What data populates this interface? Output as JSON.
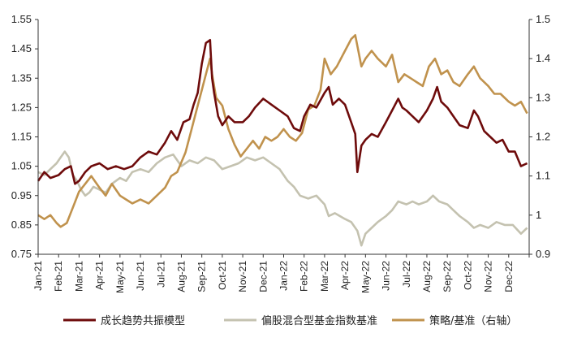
{
  "chart_data": {
    "type": "line",
    "title": "",
    "x_axis": {
      "type": "month",
      "tick_labels": [
        "Jan-21",
        "Feb-21",
        "Mar-21",
        "Apr-21",
        "May-21",
        "Jun-21",
        "Jul-21",
        "Aug-21",
        "Sep-21",
        "Oct-21",
        "Nov-21",
        "Dec-21",
        "Jan-22",
        "Feb-22",
        "Mar-22",
        "Apr-22",
        "May-22",
        "Jun-22",
        "Jul-22",
        "Aug-22",
        "Sep-22",
        "Oct-22",
        "Nov-22",
        "Dec-22"
      ],
      "range": [
        "Jan-21",
        "end of Dec-22"
      ]
    },
    "y_left": {
      "min": 0.75,
      "max": 1.55,
      "ticks": [
        0.75,
        0.85,
        0.95,
        1.05,
        1.15,
        1.25,
        1.35,
        1.45,
        1.55
      ],
      "tick_labels": [
        "0.75",
        "0.85",
        "0.95",
        "1.05",
        "1.15",
        "1.25",
        "1.35",
        "1.45",
        "1.55"
      ]
    },
    "y_right": {
      "min": 0.9,
      "max": 1.5,
      "ticks": [
        0.9,
        1.0,
        1.1,
        1.2,
        1.3,
        1.4,
        1.5
      ],
      "tick_labels": [
        "0.9",
        "1",
        "1.1",
        "1.2",
        "1.3",
        "1.4",
        "1.5"
      ]
    },
    "grid": false,
    "legend_position": "bottom",
    "series": [
      {
        "name": "成长趋势共振模型",
        "axis": "left",
        "color": "#6e0b0b",
        "points": [
          [
            0,
            1.0
          ],
          [
            0.3,
            1.03
          ],
          [
            0.6,
            1.01
          ],
          [
            1.0,
            1.02
          ],
          [
            1.3,
            1.04
          ],
          [
            1.6,
            1.05
          ],
          [
            1.8,
            0.99
          ],
          [
            2.0,
            1.0
          ],
          [
            2.3,
            1.03
          ],
          [
            2.6,
            1.05
          ],
          [
            3.0,
            1.06
          ],
          [
            3.4,
            1.04
          ],
          [
            3.8,
            1.05
          ],
          [
            4.2,
            1.04
          ],
          [
            4.6,
            1.05
          ],
          [
            5.0,
            1.08
          ],
          [
            5.4,
            1.1
          ],
          [
            5.8,
            1.09
          ],
          [
            6.2,
            1.13
          ],
          [
            6.5,
            1.17
          ],
          [
            6.8,
            1.14
          ],
          [
            7.1,
            1.2
          ],
          [
            7.4,
            1.21
          ],
          [
            7.6,
            1.26
          ],
          [
            7.8,
            1.3
          ],
          [
            8.0,
            1.4
          ],
          [
            8.2,
            1.47
          ],
          [
            8.4,
            1.48
          ],
          [
            8.5,
            1.35
          ],
          [
            8.6,
            1.3
          ],
          [
            8.8,
            1.22
          ],
          [
            9.0,
            1.19
          ],
          [
            9.3,
            1.22
          ],
          [
            9.6,
            1.2
          ],
          [
            10.0,
            1.2
          ],
          [
            10.3,
            1.22
          ],
          [
            10.6,
            1.25
          ],
          [
            11.0,
            1.28
          ],
          [
            11.4,
            1.26
          ],
          [
            11.8,
            1.24
          ],
          [
            12.2,
            1.22
          ],
          [
            12.5,
            1.18
          ],
          [
            12.8,
            1.17
          ],
          [
            13.0,
            1.22
          ],
          [
            13.3,
            1.26
          ],
          [
            13.6,
            1.25
          ],
          [
            14.0,
            1.3
          ],
          [
            14.2,
            1.32
          ],
          [
            14.4,
            1.26
          ],
          [
            14.7,
            1.28
          ],
          [
            15.0,
            1.26
          ],
          [
            15.3,
            1.2
          ],
          [
            15.5,
            1.16
          ],
          [
            15.6,
            1.03
          ],
          [
            15.8,
            1.12
          ],
          [
            16.0,
            1.14
          ],
          [
            16.3,
            1.16
          ],
          [
            16.6,
            1.15
          ],
          [
            17.0,
            1.2
          ],
          [
            17.3,
            1.24
          ],
          [
            17.6,
            1.28
          ],
          [
            17.8,
            1.25
          ],
          [
            18.0,
            1.24
          ],
          [
            18.3,
            1.22
          ],
          [
            18.6,
            1.2
          ],
          [
            19.0,
            1.24
          ],
          [
            19.3,
            1.28
          ],
          [
            19.5,
            1.32
          ],
          [
            19.7,
            1.27
          ],
          [
            20.0,
            1.25
          ],
          [
            20.3,
            1.22
          ],
          [
            20.6,
            1.19
          ],
          [
            21.0,
            1.18
          ],
          [
            21.3,
            1.24
          ],
          [
            21.5,
            1.22
          ],
          [
            21.8,
            1.17
          ],
          [
            22.1,
            1.15
          ],
          [
            22.4,
            1.13
          ],
          [
            22.7,
            1.14
          ],
          [
            23.0,
            1.1
          ],
          [
            23.3,
            1.1
          ],
          [
            23.6,
            1.05
          ],
          [
            23.9,
            1.06
          ]
        ]
      },
      {
        "name": "偏股混合型基金指数基准",
        "axis": "left",
        "color": "#c4c2b0",
        "points": [
          [
            0,
            1.03
          ],
          [
            0.3,
            1.02
          ],
          [
            0.6,
            1.04
          ],
          [
            0.9,
            1.06
          ],
          [
            1.1,
            1.08
          ],
          [
            1.3,
            1.1
          ],
          [
            1.5,
            1.08
          ],
          [
            1.7,
            1.02
          ],
          [
            1.9,
            1.0
          ],
          [
            2.1,
            0.97
          ],
          [
            2.3,
            0.95
          ],
          [
            2.5,
            0.96
          ],
          [
            2.7,
            0.98
          ],
          [
            3.0,
            0.97
          ],
          [
            3.3,
            0.96
          ],
          [
            3.6,
            0.99
          ],
          [
            4.0,
            1.01
          ],
          [
            4.3,
            1.0
          ],
          [
            4.6,
            1.03
          ],
          [
            5.0,
            1.04
          ],
          [
            5.4,
            1.03
          ],
          [
            5.8,
            1.06
          ],
          [
            6.2,
            1.08
          ],
          [
            6.6,
            1.09
          ],
          [
            7.0,
            1.05
          ],
          [
            7.4,
            1.07
          ],
          [
            7.8,
            1.06
          ],
          [
            8.2,
            1.08
          ],
          [
            8.6,
            1.07
          ],
          [
            9.0,
            1.04
          ],
          [
            9.4,
            1.05
          ],
          [
            9.8,
            1.06
          ],
          [
            10.2,
            1.08
          ],
          [
            10.6,
            1.07
          ],
          [
            11.0,
            1.08
          ],
          [
            11.4,
            1.06
          ],
          [
            11.8,
            1.04
          ],
          [
            12.2,
            1.0
          ],
          [
            12.5,
            0.98
          ],
          [
            12.8,
            0.95
          ],
          [
            13.2,
            0.94
          ],
          [
            13.6,
            0.95
          ],
          [
            14.0,
            0.92
          ],
          [
            14.2,
            0.88
          ],
          [
            14.5,
            0.89
          ],
          [
            15.0,
            0.87
          ],
          [
            15.3,
            0.86
          ],
          [
            15.6,
            0.83
          ],
          [
            15.8,
            0.78
          ],
          [
            16.0,
            0.82
          ],
          [
            16.3,
            0.84
          ],
          [
            16.6,
            0.86
          ],
          [
            17.0,
            0.88
          ],
          [
            17.3,
            0.9
          ],
          [
            17.6,
            0.93
          ],
          [
            18.0,
            0.92
          ],
          [
            18.3,
            0.93
          ],
          [
            18.6,
            0.92
          ],
          [
            19.0,
            0.93
          ],
          [
            19.3,
            0.95
          ],
          [
            19.6,
            0.93
          ],
          [
            20.0,
            0.92
          ],
          [
            20.3,
            0.9
          ],
          [
            20.6,
            0.88
          ],
          [
            21.0,
            0.86
          ],
          [
            21.3,
            0.84
          ],
          [
            21.6,
            0.85
          ],
          [
            22.0,
            0.84
          ],
          [
            22.4,
            0.86
          ],
          [
            22.8,
            0.85
          ],
          [
            23.2,
            0.85
          ],
          [
            23.6,
            0.82
          ],
          [
            23.9,
            0.84
          ]
        ]
      },
      {
        "name": "策略/基准（右轴）",
        "axis": "right",
        "color": "#c0924d",
        "points": [
          [
            0,
            1.0
          ],
          [
            0.3,
            0.99
          ],
          [
            0.6,
            1.0
          ],
          [
            0.9,
            0.98
          ],
          [
            1.1,
            0.97
          ],
          [
            1.4,
            0.98
          ],
          [
            1.7,
            1.02
          ],
          [
            2.0,
            1.06
          ],
          [
            2.3,
            1.08
          ],
          [
            2.6,
            1.1
          ],
          [
            3.0,
            1.07
          ],
          [
            3.3,
            1.05
          ],
          [
            3.6,
            1.08
          ],
          [
            4.0,
            1.05
          ],
          [
            4.3,
            1.04
          ],
          [
            4.6,
            1.03
          ],
          [
            5.0,
            1.04
          ],
          [
            5.4,
            1.03
          ],
          [
            5.8,
            1.05
          ],
          [
            6.2,
            1.07
          ],
          [
            6.5,
            1.1
          ],
          [
            6.8,
            1.11
          ],
          [
            7.2,
            1.16
          ],
          [
            7.5,
            1.22
          ],
          [
            7.8,
            1.28
          ],
          [
            8.0,
            1.32
          ],
          [
            8.2,
            1.36
          ],
          [
            8.4,
            1.4
          ],
          [
            8.5,
            1.36
          ],
          [
            8.7,
            1.3
          ],
          [
            9.0,
            1.28
          ],
          [
            9.3,
            1.22
          ],
          [
            9.6,
            1.18
          ],
          [
            9.9,
            1.15
          ],
          [
            10.2,
            1.17
          ],
          [
            10.5,
            1.19
          ],
          [
            10.8,
            1.17
          ],
          [
            11.1,
            1.2
          ],
          [
            11.4,
            1.19
          ],
          [
            11.7,
            1.2
          ],
          [
            12.0,
            1.22
          ],
          [
            12.3,
            1.2
          ],
          [
            12.6,
            1.19
          ],
          [
            12.9,
            1.21
          ],
          [
            13.2,
            1.27
          ],
          [
            13.5,
            1.28
          ],
          [
            13.8,
            1.32
          ],
          [
            14.0,
            1.4
          ],
          [
            14.3,
            1.36
          ],
          [
            14.6,
            1.38
          ],
          [
            15.0,
            1.42
          ],
          [
            15.3,
            1.45
          ],
          [
            15.5,
            1.46
          ],
          [
            15.8,
            1.38
          ],
          [
            16.0,
            1.4
          ],
          [
            16.3,
            1.42
          ],
          [
            16.6,
            1.4
          ],
          [
            17.0,
            1.38
          ],
          [
            17.3,
            1.41
          ],
          [
            17.6,
            1.34
          ],
          [
            17.9,
            1.36
          ],
          [
            18.2,
            1.35
          ],
          [
            18.5,
            1.34
          ],
          [
            18.8,
            1.33
          ],
          [
            19.1,
            1.38
          ],
          [
            19.4,
            1.4
          ],
          [
            19.7,
            1.36
          ],
          [
            20.0,
            1.37
          ],
          [
            20.3,
            1.34
          ],
          [
            20.6,
            1.33
          ],
          [
            21.0,
            1.36
          ],
          [
            21.3,
            1.38
          ],
          [
            21.6,
            1.35
          ],
          [
            22.0,
            1.33
          ],
          [
            22.3,
            1.31
          ],
          [
            22.6,
            1.31
          ],
          [
            23.0,
            1.29
          ],
          [
            23.3,
            1.28
          ],
          [
            23.6,
            1.29
          ],
          [
            23.9,
            1.26
          ]
        ]
      }
    ]
  }
}
